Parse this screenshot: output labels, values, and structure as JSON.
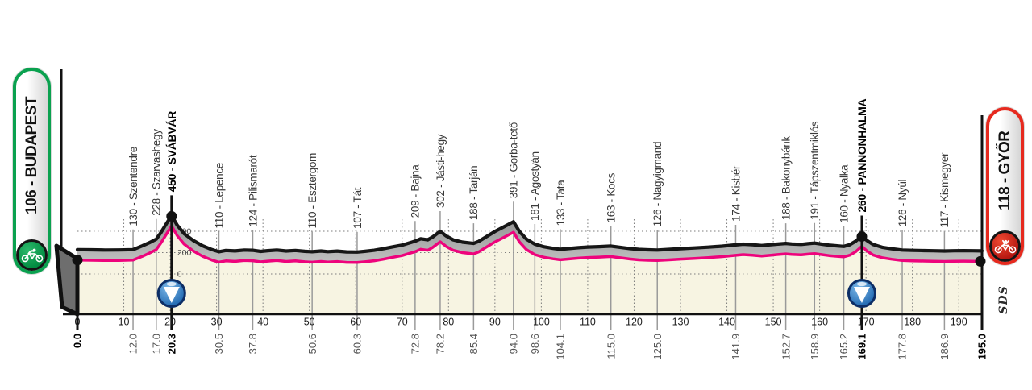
{
  "badges": {
    "start": {
      "label": "106 - BUDAPEST",
      "border_color": "#0aa14f"
    },
    "finish": {
      "label": "118 - GYŐR",
      "border_color": "#e62a1f"
    }
  },
  "logo": "SDS",
  "colors": {
    "pink_line": "#ee037c",
    "profile_edge": "#161616",
    "ribbon_gray_light": "#c0c0c0",
    "ribbon_gray_dark": "#8f8f8f",
    "cream_fill": "#f7f4e2",
    "pedestal_gray": "#6e6e6e",
    "waypoint_line": "#9a9a9a",
    "grid_dot": "#7d7d7d",
    "marker_blue": "#1a63ad",
    "marker_blue_rim": "#0d2e66"
  },
  "chart_data": {
    "type": "area",
    "x_unit": "km",
    "y_unit": "m",
    "x_range": [
      0,
      195
    ],
    "elevation_gridlines": [
      0,
      200,
      400
    ],
    "elevation_grid_labels": [
      "0",
      "200",
      "400"
    ],
    "x_ticks": [
      0,
      10,
      20,
      30,
      40,
      50,
      60,
      70,
      80,
      90,
      100,
      110,
      120,
      130,
      140,
      150,
      160,
      170,
      180,
      190
    ],
    "km_labels": [
      {
        "km": 0.0,
        "label": "0.0",
        "bold": true
      },
      {
        "km": 12.0,
        "label": "12.0",
        "bold": false
      },
      {
        "km": 17.0,
        "label": "17.0",
        "bold": false
      },
      {
        "km": 20.3,
        "label": "20.3",
        "bold": true
      },
      {
        "km": 30.5,
        "label": "30.5",
        "bold": false
      },
      {
        "km": 37.8,
        "label": "37.8",
        "bold": false
      },
      {
        "km": 50.6,
        "label": "50.6",
        "bold": false
      },
      {
        "km": 60.3,
        "label": "60.3",
        "bold": false
      },
      {
        "km": 72.8,
        "label": "72.8",
        "bold": false
      },
      {
        "km": 78.2,
        "label": "78.2",
        "bold": false
      },
      {
        "km": 85.4,
        "label": "85.4",
        "bold": false
      },
      {
        "km": 94.0,
        "label": "94.0",
        "bold": false
      },
      {
        "km": 98.6,
        "label": "98.6",
        "bold": false
      },
      {
        "km": 104.1,
        "label": "104.1",
        "bold": false
      },
      {
        "km": 115.0,
        "label": "115.0",
        "bold": false
      },
      {
        "km": 125.0,
        "label": "125.0",
        "bold": false
      },
      {
        "km": 141.9,
        "label": "141.9",
        "bold": false
      },
      {
        "km": 152.7,
        "label": "152.7",
        "bold": false
      },
      {
        "km": 158.9,
        "label": "158.9",
        "bold": false
      },
      {
        "km": 165.2,
        "label": "165.2",
        "bold": false
      },
      {
        "km": 169.1,
        "label": "169.1",
        "bold": true
      },
      {
        "km": 177.8,
        "label": "177.8",
        "bold": false
      },
      {
        "km": 186.9,
        "label": "186.9",
        "bold": false
      },
      {
        "km": 195.0,
        "label": "195.0",
        "bold": true
      }
    ],
    "waypoints": [
      {
        "km": 12.0,
        "elev": 130,
        "label": "130 - Szentendre",
        "bold": false
      },
      {
        "km": 17.0,
        "elev": 228,
        "label": "228 - Szarvashegy",
        "bold": false
      },
      {
        "km": 20.3,
        "elev": 450,
        "label": "450 - SVÁBVÁR",
        "bold": true,
        "marker": true
      },
      {
        "km": 30.5,
        "elev": 110,
        "label": "110 - Lepence",
        "bold": false
      },
      {
        "km": 37.8,
        "elev": 124,
        "label": "124 - Pilismarót",
        "bold": false
      },
      {
        "km": 50.6,
        "elev": 110,
        "label": "110 - Esztergom",
        "bold": false
      },
      {
        "km": 60.3,
        "elev": 107,
        "label": "107 - Tát",
        "bold": false
      },
      {
        "km": 72.8,
        "elev": 209,
        "label": "209 - Bajna",
        "bold": false
      },
      {
        "km": 78.2,
        "elev": 302,
        "label": "302 - Jásti-hegy",
        "bold": false
      },
      {
        "km": 85.4,
        "elev": 188,
        "label": "188 - Tarján",
        "bold": false
      },
      {
        "km": 94.0,
        "elev": 391,
        "label": "391 - Gorba-tető",
        "bold": false
      },
      {
        "km": 98.6,
        "elev": 181,
        "label": "181 - Agostyán",
        "bold": false
      },
      {
        "km": 104.1,
        "elev": 133,
        "label": "133 - Tata",
        "bold": false
      },
      {
        "km": 115.0,
        "elev": 163,
        "label": "163 - Kocs",
        "bold": false
      },
      {
        "km": 125.0,
        "elev": 126,
        "label": "126 - Nagyigmand",
        "bold": false
      },
      {
        "km": 141.9,
        "elev": 174,
        "label": "174 - Kisbér",
        "bold": false
      },
      {
        "km": 152.7,
        "elev": 188,
        "label": "188 - Bakonybánk",
        "bold": false
      },
      {
        "km": 158.9,
        "elev": 191,
        "label": "191 - Tápszentmiklós",
        "bold": false
      },
      {
        "km": 165.2,
        "elev": 160,
        "label": "160 - Nyalka",
        "bold": false
      },
      {
        "km": 169.1,
        "elev": 260,
        "label": "260 - PANNONHALMA",
        "bold": true,
        "marker": true
      },
      {
        "km": 177.8,
        "elev": 126,
        "label": "126 - Nyúl",
        "bold": false
      },
      {
        "km": 186.9,
        "elev": 117,
        "label": "117 - Kismegyer",
        "bold": false
      }
    ],
    "profile": [
      [
        0,
        130
      ],
      [
        3,
        128
      ],
      [
        6,
        126
      ],
      [
        9,
        127
      ],
      [
        12,
        130
      ],
      [
        14,
        165
      ],
      [
        15.5,
        195
      ],
      [
        17,
        228
      ],
      [
        18,
        290
      ],
      [
        19,
        360
      ],
      [
        20.3,
        450
      ],
      [
        21.5,
        360
      ],
      [
        23,
        280
      ],
      [
        25,
        215
      ],
      [
        27,
        165
      ],
      [
        29,
        130
      ],
      [
        30.5,
        110
      ],
      [
        32,
        122
      ],
      [
        34,
        118
      ],
      [
        36,
        126
      ],
      [
        37.8,
        124
      ],
      [
        39.5,
        113
      ],
      [
        41,
        120
      ],
      [
        43,
        126
      ],
      [
        45,
        117
      ],
      [
        47,
        122
      ],
      [
        49,
        114
      ],
      [
        50.6,
        110
      ],
      [
        52.5,
        117
      ],
      [
        54,
        111
      ],
      [
        56,
        116
      ],
      [
        58,
        109
      ],
      [
        60.3,
        107
      ],
      [
        62,
        114
      ],
      [
        64,
        124
      ],
      [
        66,
        139
      ],
      [
        68,
        156
      ],
      [
        70,
        172
      ],
      [
        72.8,
        209
      ],
      [
        74,
        232
      ],
      [
        75.5,
        222
      ],
      [
        76.5,
        246
      ],
      [
        78.2,
        302
      ],
      [
        79.5,
        258
      ],
      [
        81,
        222
      ],
      [
        83,
        200
      ],
      [
        85.4,
        188
      ],
      [
        86.5,
        207
      ],
      [
        88,
        247
      ],
      [
        90,
        300
      ],
      [
        92,
        345
      ],
      [
        94,
        391
      ],
      [
        95.3,
        300
      ],
      [
        96.8,
        228
      ],
      [
        98.6,
        181
      ],
      [
        100.5,
        157
      ],
      [
        102.5,
        142
      ],
      [
        104.1,
        133
      ],
      [
        106,
        140
      ],
      [
        108,
        148
      ],
      [
        110,
        154
      ],
      [
        112.5,
        158
      ],
      [
        115,
        163
      ],
      [
        117,
        152
      ],
      [
        119,
        140
      ],
      [
        121,
        132
      ],
      [
        123,
        128
      ],
      [
        125,
        126
      ],
      [
        127.5,
        132
      ],
      [
        130,
        139
      ],
      [
        133,
        146
      ],
      [
        136,
        153
      ],
      [
        139,
        162
      ],
      [
        141.9,
        174
      ],
      [
        143.5,
        181
      ],
      [
        145.5,
        176
      ],
      [
        147.5,
        168
      ],
      [
        149.5,
        176
      ],
      [
        151,
        182
      ],
      [
        152.7,
        188
      ],
      [
        154,
        183
      ],
      [
        156,
        179
      ],
      [
        157.5,
        186
      ],
      [
        158.9,
        191
      ],
      [
        160.5,
        181
      ],
      [
        162,
        172
      ],
      [
        163.5,
        166
      ],
      [
        165.2,
        160
      ],
      [
        166.5,
        176
      ],
      [
        167.8,
        210
      ],
      [
        169.1,
        260
      ],
      [
        170.2,
        215
      ],
      [
        171.5,
        178
      ],
      [
        173.5,
        152
      ],
      [
        175.5,
        138
      ],
      [
        177.8,
        126
      ],
      [
        180,
        123
      ],
      [
        182.5,
        121
      ],
      [
        184.5,
        119
      ],
      [
        186.9,
        117
      ],
      [
        189,
        119
      ],
      [
        191,
        120
      ],
      [
        193,
        119
      ],
      [
        195,
        118
      ]
    ]
  }
}
